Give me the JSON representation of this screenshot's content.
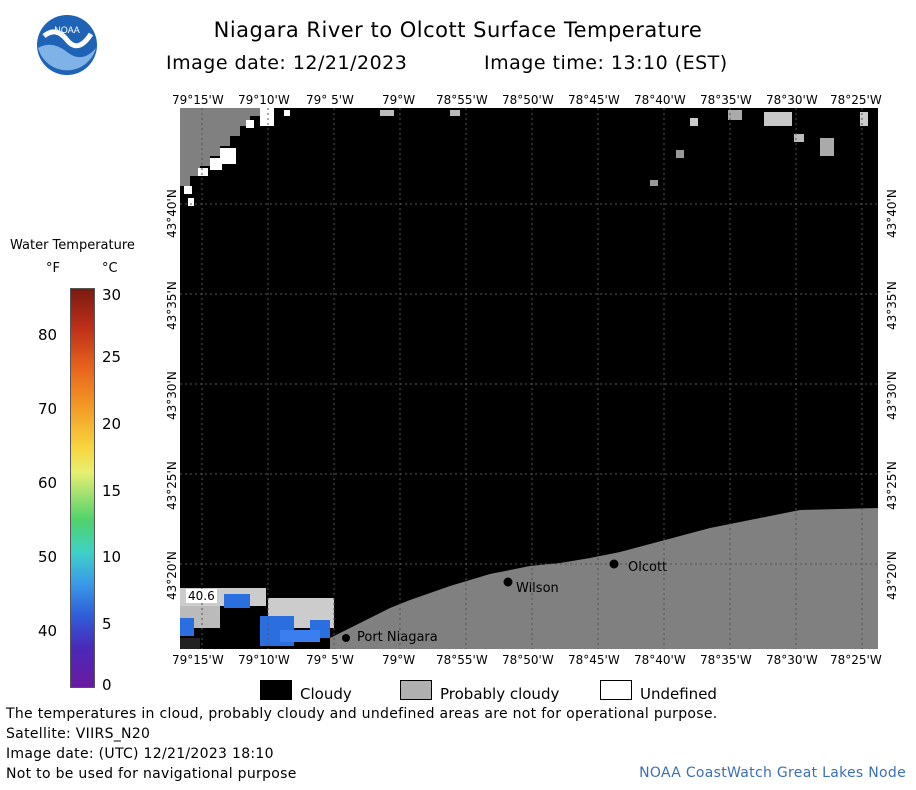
{
  "header": {
    "title": "Niagara River to Olcott Surface Temperature",
    "image_date": "Image date: 12/21/2023",
    "image_time": "Image time: 13:10 (EST)"
  },
  "logo": {
    "text": "NOAA"
  },
  "scale": {
    "title": "Water Temperature",
    "unit_f": "°F",
    "unit_c": "°C",
    "f_ticks": [
      "80",
      "70",
      "60",
      "50",
      "40"
    ],
    "c_ticks": [
      "30",
      "25",
      "20",
      "15",
      "10",
      "5",
      "0"
    ]
  },
  "map": {
    "lon_labels": [
      "79°15'W",
      "79°10'W",
      "79° 5'W",
      "79°W",
      "78°55'W",
      "78°50'W",
      "78°45'W",
      "78°40'W",
      "78°35'W",
      "78°30'W",
      "78°25'W"
    ],
    "lat_labels": [
      "43°40'N",
      "43°35'N",
      "43°30'N",
      "43°25'N",
      "43°20'N"
    ],
    "places": [
      "Port Niagara",
      "Wilson",
      "Olcott"
    ],
    "temp_callout": "40.6"
  },
  "legend": {
    "cloudy": "Cloudy",
    "probably_cloudy": "Probably cloudy",
    "undefined": "Undefined"
  },
  "footer": {
    "line1": "The temperatures in cloud, probably cloudy and undefined areas are not for operational purpose.",
    "line2": "Satellite: VIIRS_N20",
    "line3": "Image date: (UTC) 12/21/2023  18:10",
    "line4": "Not to be used for navigational purpose",
    "credit": "NOAA CoastWatch Great Lakes Node"
  },
  "colors": {
    "cloudy": "#000000",
    "probably_cloudy": "#808080",
    "undefined": "#ffffff",
    "credit": "#3b6fb8"
  }
}
